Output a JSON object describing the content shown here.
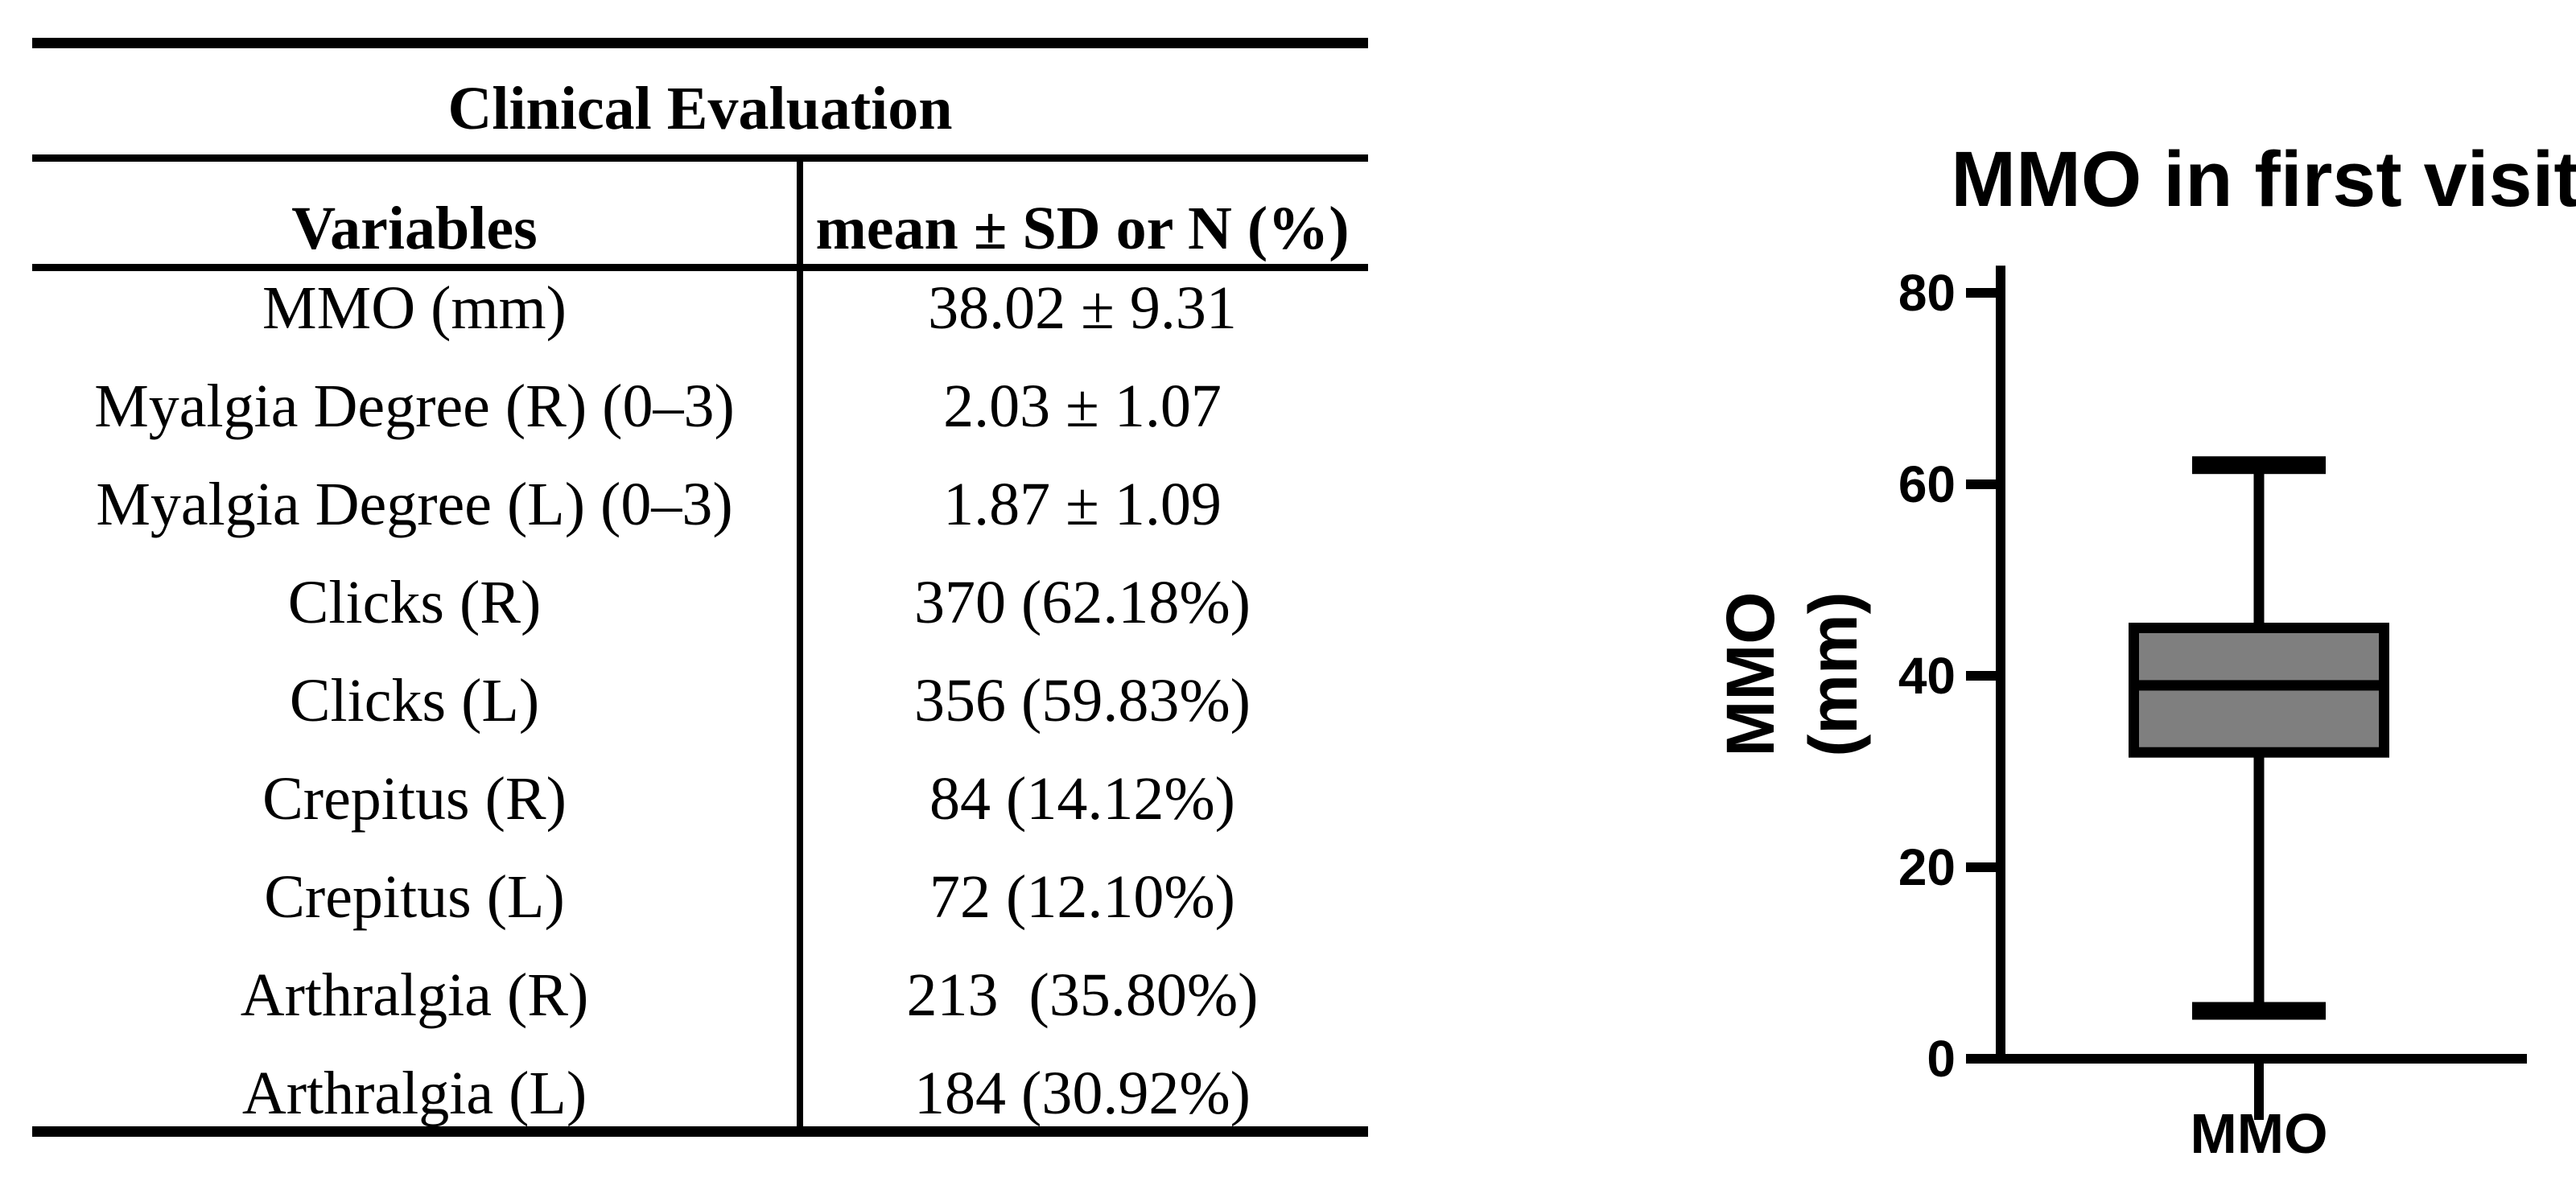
{
  "table": {
    "title": "Clinical Evaluation",
    "columns": [
      "Variables",
      "mean ± SD or N (%)"
    ],
    "rows": [
      [
        "MMO (mm)",
        "38.02 ± 9.31"
      ],
      [
        "Myalgia Degree (R) (0–3)",
        "2.03 ± 1.07"
      ],
      [
        "Myalgia Degree (L) (0–3)",
        "1.87 ± 1.09"
      ],
      [
        "Clicks (R)",
        "370 (62.18%)"
      ],
      [
        "Clicks (L)",
        "356 (59.83%)"
      ],
      [
        "Crepitus (R)",
        "84 (14.12%)"
      ],
      [
        "Crepitus (L)",
        "72 (12.10%)"
      ],
      [
        "Arthralgia (R)",
        "213  (35.80%)"
      ],
      [
        "Arthralgia (L)",
        "184 (30.92%)"
      ]
    ]
  },
  "chart_data": {
    "type": "box",
    "title": "MMO in first visit",
    "ylabel_lines": [
      "MMO",
      "(mm)"
    ],
    "xlabel": "MMO",
    "categories": [
      "MMO"
    ],
    "yticks": [
      0,
      20,
      40,
      60,
      80
    ],
    "ylim": [
      0,
      82
    ],
    "grid": false,
    "series": [
      {
        "name": "MMO",
        "min": 5,
        "q1": 32,
        "median": 39,
        "q3": 45,
        "max": 62
      }
    ],
    "box_fill": "#7f7f7f",
    "line_color": "#000000"
  }
}
